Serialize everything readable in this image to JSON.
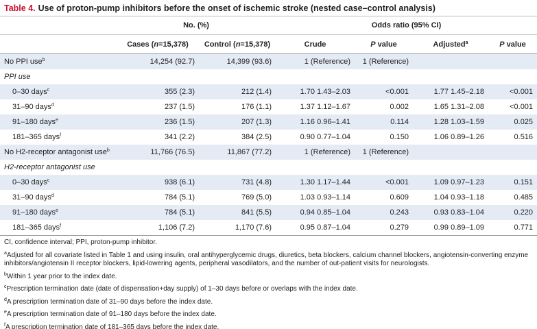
{
  "header": {
    "label": "Table 4.",
    "title": "Use of proton-pump inhibitors before the onset of ischemic stroke (nested case–control analysis)"
  },
  "table": {
    "group_headers": [
      {
        "text": "No. (%)",
        "span": 2
      },
      {
        "text": "Odds ratio (95% CI)",
        "span": 4
      }
    ],
    "columns": [
      [
        {
          "text": "Cases ("
        },
        {
          "text": "n",
          "italic": true
        },
        {
          "text": "=15,378)"
        }
      ],
      [
        {
          "text": "Control ("
        },
        {
          "text": "n",
          "italic": true
        },
        {
          "text": "=15,378)"
        }
      ],
      [
        {
          "text": "Crude"
        }
      ],
      [
        {
          "text": "P",
          "italic": true
        },
        {
          "text": " value"
        }
      ],
      [
        {
          "text": "Adjusted"
        },
        {
          "text": "a",
          "sup": true
        }
      ],
      [
        {
          "text": "P",
          "italic": true
        },
        {
          "text": " value"
        }
      ]
    ],
    "rows": [
      {
        "label": "No PPI use",
        "note": "b",
        "cells": [
          "14,254 (92.7)",
          "14,399 (93.6)",
          "1 (Reference)",
          "1 (Reference)"
        ]
      },
      {
        "section": "PPI use"
      },
      {
        "label": "0–30 days",
        "note": "c",
        "cells": [
          "355 (2.3)",
          "212 (1.4)",
          "1.70 1.43–2.03",
          "<0.001",
          "1.77 1.45–2.18",
          "<0.001"
        ]
      },
      {
        "label": "31–90 days",
        "note": "d",
        "cells": [
          "237 (1.5)",
          "176 (1.1)",
          "1.37 1.12–1.67",
          "0.002",
          "1.65 1.31–2.08",
          "<0.001"
        ]
      },
      {
        "label": "91–180 days",
        "note": "e",
        "cells": [
          "236 (1.5)",
          "207 (1.3)",
          "1.16 0.96–1.41",
          "0.114",
          "1.28 1.03–1.59",
          "0.025"
        ]
      },
      {
        "label": "181–365 days",
        "note": "f",
        "cells": [
          "341 (2.2)",
          "384 (2.5)",
          "0.90 0.77–1.04",
          "0.150",
          "1.06 0.89–1.26",
          "0.516"
        ]
      },
      {
        "label": "No H2-receptor antagonist use",
        "note": "b",
        "cells": [
          "11,766 (76.5)",
          "11,867 (77.2)",
          "1 (Reference)",
          "1 (Reference)"
        ]
      },
      {
        "section": "H2-receptor antagonist use"
      },
      {
        "label": "0–30 days",
        "note": "c",
        "cells": [
          "938 (6.1)",
          "731 (4.8)",
          "1.30 1.17–1.44",
          "<0.001",
          "1.09 0.97–1.23",
          "0.151"
        ]
      },
      {
        "label": "31–90 days",
        "note": "d",
        "cells": [
          "784 (5.1)",
          "769 (5.0)",
          "1.03 0.93–1.14",
          "0.609",
          "1.04 0.93–1.18",
          "0.485"
        ]
      },
      {
        "label": "91–180 days",
        "note": "e",
        "cells": [
          "784 (5.1)",
          "841 (5.5)",
          "0.94 0.85–1.04",
          "0.243",
          "0.93 0.83–1.04",
          "0.220"
        ]
      },
      {
        "label": "181–365 days",
        "note": "f",
        "cells": [
          "1,106 (7.2)",
          "1,170 (7.6)",
          "0.95 0.87–1.04",
          "0.279",
          "0.99 0.89–1.09",
          "0.771"
        ]
      }
    ]
  },
  "footnotes": [
    {
      "text": "CI, confidence interval; PPI, proton-pump inhibitor."
    },
    {
      "mark": "a",
      "text": "Adjusted for all covariate listed in Table 1 and using insulin, oral antihyperglycemic drugs, diuretics, beta blockers, calcium channel blockers, angiotensin-converting enzyme inhibitors/angiotensin II receptor blockers, lipid-lowering agents, peripheral vasodilators, and the number of out-patient visits for neurologists."
    },
    {
      "mark": "b",
      "text": "Within 1 year prior to the index date."
    },
    {
      "mark": "c",
      "text": "Prescription termination date (date of dispensation+day supply) of 1–30 days before or overlaps with the index date."
    },
    {
      "mark": "d",
      "text": "A prescription termination date of 31–90 days before the index date."
    },
    {
      "mark": "e",
      "text": "A prescription termination date of 91–180 days before the index date."
    },
    {
      "mark": "f",
      "text": "A prescription termination date of 181–365 days before the index date."
    }
  ]
}
